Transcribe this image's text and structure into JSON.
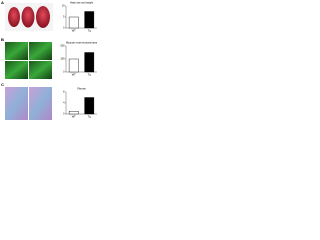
{
  "panel_labels": [
    "A",
    "B",
    "C"
  ],
  "chart_data": [
    {
      "type": "bar",
      "title": "Heart size and weight",
      "categories": [
        "WT",
        "Tg"
      ],
      "values": [
        5,
        7.5
      ],
      "colors": [
        "#ffffff",
        "#000000"
      ],
      "ylim": [
        0,
        10
      ],
      "yticks": [
        0,
        5,
        10
      ]
    },
    {
      "type": "bar",
      "title": "Myocyte cross-sectional area",
      "categories": [
        "WT",
        "Tg"
      ],
      "values": [
        300,
        450
      ],
      "colors": [
        "#ffffff",
        "#000000"
      ],
      "ylim": [
        0,
        600
      ],
      "yticks": [
        0,
        300,
        600
      ]
    },
    {
      "type": "bar",
      "title": "Fibrosis",
      "categories": [
        "WT",
        "Tg"
      ],
      "values": [
        1,
        6
      ],
      "colors": [
        "#ffffff",
        "#000000"
      ],
      "ylim": [
        0,
        8
      ],
      "yticks": [
        0,
        4,
        8
      ]
    }
  ]
}
